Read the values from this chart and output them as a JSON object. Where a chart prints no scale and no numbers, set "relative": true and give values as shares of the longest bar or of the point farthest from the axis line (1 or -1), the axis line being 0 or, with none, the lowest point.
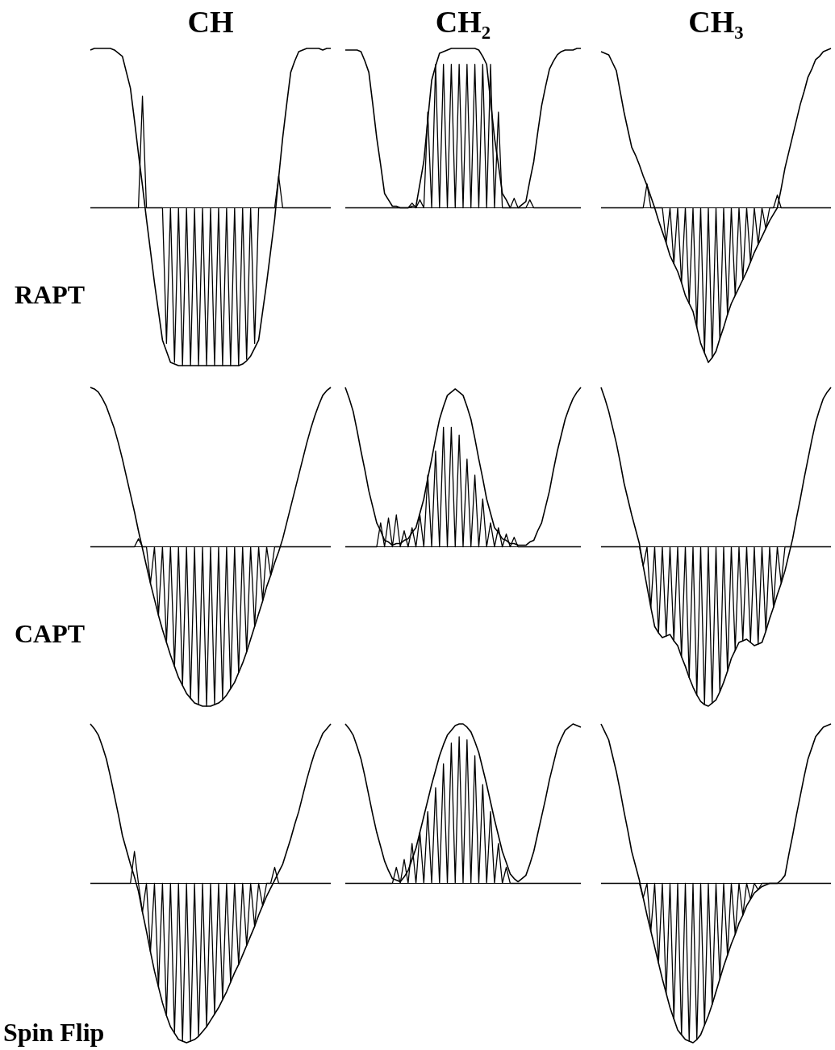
{
  "chart_data": [
    {
      "type": "line",
      "title": "CH",
      "ylabel": "RAPT",
      "relative": true,
      "categories": [
        null,
        null,
        null,
        null,
        null,
        null,
        null,
        null,
        null,
        null,
        null,
        null,
        null,
        null,
        null,
        null,
        null,
        null,
        null,
        null,
        null,
        null,
        null,
        null,
        null,
        null,
        null,
        null,
        null,
        null,
        null,
        null,
        null,
        null,
        null,
        null,
        null,
        null,
        null,
        null,
        null,
        null,
        null,
        null,
        null,
        null,
        null,
        null,
        null,
        null,
        null,
        null,
        null,
        null,
        null,
        null,
        null,
        null,
        null,
        null,
        null
      ],
      "series": [
        {
          "color": "#000000",
          "values": [
            0.99,
            1,
            1,
            1,
            1,
            1,
            0.99,
            0.97,
            0.95,
            0.85,
            0.75,
            0.55,
            0.34,
            0.14,
            -0.07,
            -0.27,
            -0.47,
            -0.65,
            -0.83,
            -0.9,
            -0.97,
            -0.98,
            -0.99,
            -0.99,
            -0.99,
            -0.99,
            -0.99,
            -0.99,
            -0.99,
            -0.99,
            -0.99,
            -0.99,
            -0.99,
            -0.99,
            -0.99,
            -0.99,
            -0.99,
            -0.99,
            -0.98,
            -0.96,
            -0.93,
            -0.88,
            -0.83,
            -0.65,
            -0.47,
            -0.27,
            -0.07,
            0.19,
            0.44,
            0.65,
            0.85,
            0.92,
            0.98,
            0.99,
            1,
            1,
            1,
            1,
            0.99,
            1,
            1
          ]
        },
        {
          "color": "#000000",
          "values": [
            0,
            0,
            0,
            0,
            0,
            0,
            0,
            0,
            0,
            0,
            0,
            0,
            0,
            0.7,
            0,
            0,
            0,
            0,
            0,
            -0.85,
            0,
            -0.97,
            0,
            -0.99,
            0,
            -0.99,
            0,
            -0.99,
            0,
            -0.99,
            0,
            -0.99,
            0,
            -0.99,
            0,
            -0.99,
            0,
            -0.99,
            0,
            -0.95,
            0,
            -0.85,
            0,
            0,
            0,
            0,
            0,
            0.2,
            0,
            0,
            0,
            0,
            0,
            0,
            0,
            0,
            0,
            0,
            0,
            0,
            0
          ]
        }
      ]
    },
    {
      "type": "line",
      "title": "CH₂",
      "relative": true,
      "categories": [
        null,
        null,
        null,
        null,
        null,
        null,
        null,
        null,
        null,
        null,
        null,
        null,
        null,
        null,
        null,
        null,
        null,
        null,
        null,
        null,
        null,
        null,
        null,
        null,
        null,
        null,
        null,
        null,
        null,
        null,
        null,
        null,
        null,
        null,
        null,
        null,
        null,
        null,
        null,
        null,
        null,
        null,
        null,
        null,
        null,
        null,
        null,
        null,
        null,
        null,
        null,
        null,
        null,
        null,
        null,
        null,
        null,
        null,
        null,
        null,
        null
      ],
      "series": [
        {
          "color": "#000000",
          "values": [
            0.99,
            0.99,
            0.99,
            0.99,
            0.98,
            0.92,
            0.85,
            0.65,
            0.44,
            0.27,
            0.09,
            0.05,
            0.01,
            0.01,
            0,
            0,
            0,
            0.01,
            0.01,
            0.15,
            0.29,
            0.55,
            0.8,
            0.89,
            0.97,
            0.98,
            0.99,
            1,
            1,
            1,
            1,
            1,
            1,
            1,
            0.99,
            0.95,
            0.9,
            0.67,
            0.44,
            0.27,
            0.09,
            0.05,
            0,
            0,
            0,
            0.02,
            0.04,
            0.17,
            0.29,
            0.47,
            0.64,
            0.76,
            0.87,
            0.92,
            0.96,
            0.98,
            0.99,
            0.99,
            0.99,
            1,
            1
          ]
        },
        {
          "color": "#000000",
          "values": [
            0,
            0,
            0,
            0,
            0,
            0,
            0,
            0,
            0,
            0,
            0,
            0,
            0,
            0,
            0,
            0,
            0,
            0.03,
            0,
            0.05,
            0,
            0.6,
            0,
            0.9,
            0,
            0.9,
            0,
            0.9,
            0,
            0.9,
            0,
            0.9,
            0,
            0.9,
            0,
            0.9,
            0,
            0.9,
            0,
            0.6,
            0,
            0,
            0,
            0.06,
            0,
            0,
            0,
            0.05,
            0,
            0,
            0,
            0,
            0,
            0,
            0,
            0,
            0,
            0,
            0,
            0,
            0
          ]
        }
      ]
    },
    {
      "type": "line",
      "title": "CH₃",
      "relative": true,
      "categories": [
        null,
        null,
        null,
        null,
        null,
        null,
        null,
        null,
        null,
        null,
        null,
        null,
        null,
        null,
        null,
        null,
        null,
        null,
        null,
        null,
        null,
        null,
        null,
        null,
        null,
        null,
        null,
        null,
        null,
        null,
        null,
        null,
        null,
        null,
        null,
        null,
        null,
        null,
        null,
        null,
        null,
        null,
        null,
        null,
        null,
        null,
        null,
        null,
        null,
        null,
        null,
        null,
        null,
        null,
        null,
        null,
        null,
        null,
        null,
        null,
        null
      ],
      "series": [
        {
          "color": "#000000",
          "values": [
            0.98,
            0.97,
            0.96,
            0.91,
            0.86,
            0.73,
            0.6,
            0.49,
            0.38,
            0.33,
            0.27,
            0.2,
            0.14,
            0.07,
            0,
            -0.08,
            -0.15,
            -0.22,
            -0.3,
            -0.35,
            -0.4,
            -0.47,
            -0.55,
            -0.6,
            -0.65,
            -0.75,
            -0.85,
            -0.91,
            -0.97,
            -0.94,
            -0.9,
            -0.82,
            -0.75,
            -0.67,
            -0.6,
            -0.55,
            -0.5,
            -0.45,
            -0.4,
            -0.34,
            -0.28,
            -0.23,
            -0.18,
            -0.13,
            -0.08,
            -0.04,
            0,
            0.12,
            0.25,
            0.35,
            0.45,
            0.55,
            0.65,
            0.73,
            0.82,
            0.87,
            0.93,
            0.95,
            0.98,
            0.99,
            1
          ]
        },
        {
          "color": "#000000",
          "values": [
            0,
            0,
            0,
            0,
            0,
            0,
            0,
            0,
            0,
            0,
            0,
            0,
            0.15,
            0,
            0,
            0,
            0,
            -0.22,
            0,
            -0.35,
            0,
            -0.47,
            0,
            -0.6,
            0,
            -0.75,
            0,
            -0.91,
            0,
            -0.94,
            0,
            -0.82,
            0,
            -0.67,
            0,
            -0.55,
            0,
            -0.45,
            0,
            -0.34,
            0,
            -0.23,
            0,
            -0.13,
            0,
            0,
            0.08,
            0,
            0,
            0,
            0,
            0,
            0,
            0,
            0,
            0,
            0,
            0,
            0,
            0,
            0
          ]
        }
      ]
    },
    {
      "type": "line",
      "ylabel": "CAPT",
      "relative": true,
      "categories": [
        null,
        null,
        null,
        null,
        null,
        null,
        null,
        null,
        null,
        null,
        null,
        null,
        null,
        null,
        null,
        null,
        null,
        null,
        null,
        null,
        null,
        null,
        null,
        null,
        null,
        null,
        null,
        null,
        null,
        null,
        null,
        null,
        null,
        null,
        null,
        null,
        null,
        null,
        null,
        null,
        null,
        null,
        null,
        null,
        null,
        null,
        null,
        null,
        null,
        null,
        null,
        null,
        null,
        null,
        null,
        null,
        null,
        null,
        null,
        null,
        null
      ],
      "series": [
        {
          "color": "#000000",
          "values": [
            1,
            0.99,
            0.97,
            0.93,
            0.88,
            0.81,
            0.74,
            0.65,
            0.55,
            0.44,
            0.33,
            0.22,
            0.1,
            -0.01,
            -0.12,
            -0.23,
            -0.33,
            -0.43,
            -0.52,
            -0.6,
            -0.68,
            -0.75,
            -0.82,
            -0.87,
            -0.92,
            -0.95,
            -0.98,
            -0.99,
            -1,
            -1,
            -1,
            -0.99,
            -0.98,
            -0.96,
            -0.93,
            -0.89,
            -0.85,
            -0.79,
            -0.73,
            -0.66,
            -0.58,
            -0.5,
            -0.42,
            -0.34,
            -0.25,
            -0.18,
            -0.1,
            -0.03,
            0.05,
            0.15,
            0.25,
            0.35,
            0.45,
            0.55,
            0.65,
            0.74,
            0.82,
            0.89,
            0.95,
            0.98,
            1
          ]
        },
        {
          "color": "#000000",
          "values": [
            0,
            0,
            0,
            0,
            0,
            0,
            0,
            0,
            0,
            0,
            0,
            0,
            0.05,
            0,
            0,
            -0.23,
            0,
            -0.43,
            0,
            -0.6,
            0,
            -0.75,
            0,
            -0.87,
            0,
            -0.95,
            0,
            -0.99,
            0,
            -1,
            0,
            -0.99,
            0,
            -0.96,
            0,
            -0.89,
            0,
            -0.79,
            0,
            -0.66,
            0,
            -0.5,
            0,
            -0.34,
            0,
            -0.18,
            0,
            0,
            0,
            0,
            0,
            0,
            0,
            0,
            0,
            0,
            0,
            0,
            0,
            0,
            0
          ]
        }
      ]
    },
    {
      "type": "line",
      "relative": true,
      "categories": [
        null,
        null,
        null,
        null,
        null,
        null,
        null,
        null,
        null,
        null,
        null,
        null,
        null,
        null,
        null,
        null,
        null,
        null,
        null,
        null,
        null,
        null,
        null,
        null,
        null,
        null,
        null,
        null,
        null,
        null,
        null,
        null,
        null,
        null,
        null,
        null,
        null,
        null,
        null,
        null,
        null,
        null,
        null,
        null,
        null,
        null,
        null,
        null,
        null,
        null,
        null,
        null,
        null,
        null,
        null,
        null,
        null,
        null,
        null,
        null,
        null
      ],
      "series": [
        {
          "color": "#000000",
          "values": [
            1,
            0.93,
            0.85,
            0.73,
            0.6,
            0.48,
            0.35,
            0.25,
            0.15,
            0.1,
            0.04,
            0.03,
            0.01,
            0.02,
            0.02,
            0.04,
            0.05,
            0.09,
            0.12,
            0.21,
            0.3,
            0.43,
            0.55,
            0.68,
            0.8,
            0.88,
            0.95,
            0.97,
            0.99,
            0.97,
            0.95,
            0.88,
            0.8,
            0.68,
            0.55,
            0.43,
            0.3,
            0.21,
            0.12,
            0.09,
            0.05,
            0.04,
            0.02,
            0.02,
            0.01,
            0.01,
            0.01,
            0.03,
            0.04,
            0.1,
            0.15,
            0.25,
            0.35,
            0.48,
            0.6,
            0.7,
            0.8,
            0.87,
            0.93,
            0.97,
            1
          ]
        },
        {
          "color": "#000000",
          "values": [
            0,
            0,
            0,
            0,
            0,
            0,
            0,
            0,
            0,
            0.15,
            0,
            0.18,
            0,
            0.2,
            0,
            0.1,
            0,
            0.12,
            0,
            0.2,
            0,
            0.45,
            0,
            0.6,
            0,
            0.75,
            0,
            0.75,
            0,
            0.7,
            0,
            0.55,
            0,
            0.45,
            0,
            0.3,
            0,
            0.15,
            0,
            0.12,
            0,
            0.08,
            0,
            0.06,
            0,
            0,
            0,
            0,
            0,
            0,
            0,
            0,
            0,
            0,
            0,
            0,
            0,
            0,
            0,
            0,
            0
          ]
        }
      ]
    },
    {
      "type": "line",
      "relative": true,
      "categories": [
        null,
        null,
        null,
        null,
        null,
        null,
        null,
        null,
        null,
        null,
        null,
        null,
        null,
        null,
        null,
        null,
        null,
        null,
        null,
        null,
        null,
        null,
        null,
        null,
        null,
        null,
        null,
        null,
        null,
        null,
        null,
        null,
        null,
        null,
        null,
        null,
        null,
        null,
        null,
        null,
        null,
        null,
        null,
        null,
        null,
        null,
        null,
        null,
        null,
        null,
        null,
        null,
        null,
        null,
        null,
        null,
        null,
        null,
        null,
        null,
        null
      ],
      "series": [
        {
          "color": "#000000",
          "values": [
            1,
            0.93,
            0.85,
            0.75,
            0.65,
            0.53,
            0.4,
            0.3,
            0.2,
            0.11,
            0.02,
            -0.12,
            -0.25,
            -0.38,
            -0.5,
            -0.54,
            -0.57,
            -0.56,
            -0.55,
            -0.59,
            -0.62,
            -0.69,
            -0.75,
            -0.82,
            -0.88,
            -0.93,
            -0.97,
            -0.99,
            -1,
            -0.98,
            -0.96,
            -0.91,
            -0.85,
            -0.78,
            -0.7,
            -0.65,
            -0.6,
            -0.59,
            -0.58,
            -0.6,
            -0.62,
            -0.61,
            -0.6,
            -0.53,
            -0.45,
            -0.38,
            -0.3,
            -0.23,
            -0.15,
            -0.05,
            0.05,
            0.18,
            0.3,
            0.43,
            0.55,
            0.67,
            0.78,
            0.86,
            0.93,
            0.97,
            1
          ]
        },
        {
          "color": "#000000",
          "values": [
            0,
            0,
            0,
            0,
            0,
            0,
            0,
            0,
            0,
            0,
            0,
            -0.12,
            0,
            -0.38,
            0,
            -0.54,
            0,
            -0.56,
            0,
            -0.59,
            0,
            -0.69,
            0,
            -0.82,
            0,
            -0.93,
            0,
            -0.99,
            0,
            -0.98,
            0,
            -0.91,
            0,
            -0.78,
            0,
            -0.65,
            0,
            -0.59,
            0,
            -0.6,
            0,
            -0.61,
            0,
            -0.53,
            0,
            -0.38,
            0,
            -0.23,
            0,
            0,
            0,
            0,
            0,
            0,
            0,
            0,
            0,
            0,
            0,
            0,
            0
          ]
        }
      ]
    },
    {
      "type": "line",
      "ylabel": "Spin Flip",
      "relative": true,
      "categories": [
        null,
        null,
        null,
        null,
        null,
        null,
        null,
        null,
        null,
        null,
        null,
        null,
        null,
        null,
        null,
        null,
        null,
        null,
        null,
        null,
        null,
        null,
        null,
        null,
        null,
        null,
        null,
        null,
        null,
        null,
        null,
        null,
        null,
        null,
        null,
        null,
        null,
        null,
        null,
        null,
        null,
        null,
        null,
        null,
        null,
        null,
        null,
        null,
        null,
        null,
        null,
        null,
        null,
        null,
        null,
        null,
        null,
        null,
        null,
        null,
        null
      ],
      "series": [
        {
          "color": "#000000",
          "values": [
            1,
            0.97,
            0.93,
            0.86,
            0.78,
            0.67,
            0.55,
            0.43,
            0.3,
            0.21,
            0.12,
            0.04,
            -0.05,
            -0.18,
            -0.3,
            -0.43,
            -0.55,
            -0.65,
            -0.75,
            -0.83,
            -0.9,
            -0.94,
            -0.98,
            -0.99,
            -1,
            -0.99,
            -0.98,
            -0.96,
            -0.93,
            -0.9,
            -0.86,
            -0.82,
            -0.78,
            -0.73,
            -0.68,
            -0.62,
            -0.56,
            -0.51,
            -0.45,
            -0.39,
            -0.33,
            -0.27,
            -0.2,
            -0.14,
            -0.08,
            -0.03,
            0.02,
            0.07,
            0.12,
            0.2,
            0.28,
            0.37,
            0.45,
            0.55,
            0.65,
            0.74,
            0.82,
            0.88,
            0.94,
            0.97,
            1
          ]
        },
        {
          "color": "#000000",
          "values": [
            0,
            0,
            0,
            0,
            0,
            0,
            0,
            0,
            0,
            0,
            0,
            0.2,
            0,
            -0.18,
            0,
            -0.43,
            0,
            -0.65,
            0,
            -0.83,
            0,
            -0.94,
            0,
            -0.99,
            0,
            -0.99,
            0,
            -0.96,
            0,
            -0.9,
            0,
            -0.82,
            0,
            -0.73,
            0,
            -0.62,
            0,
            -0.51,
            0,
            -0.39,
            0,
            -0.27,
            0,
            -0.14,
            0,
            0,
            0.1,
            0,
            0,
            0,
            0,
            0,
            0,
            0,
            0,
            0,
            0,
            0,
            0,
            0,
            0
          ]
        }
      ]
    },
    {
      "type": "line",
      "relative": true,
      "categories": [
        null,
        null,
        null,
        null,
        null,
        null,
        null,
        null,
        null,
        null,
        null,
        null,
        null,
        null,
        null,
        null,
        null,
        null,
        null,
        null,
        null,
        null,
        null,
        null,
        null,
        null,
        null,
        null,
        null,
        null,
        null,
        null,
        null,
        null,
        null,
        null,
        null,
        null,
        null,
        null,
        null,
        null,
        null,
        null,
        null,
        null,
        null,
        null,
        null,
        null,
        null,
        null,
        null,
        null,
        null,
        null,
        null,
        null,
        null,
        null,
        null
      ],
      "series": [
        {
          "color": "#000000",
          "values": [
            1,
            0.97,
            0.93,
            0.86,
            0.78,
            0.67,
            0.55,
            0.43,
            0.32,
            0.23,
            0.14,
            0.08,
            0.03,
            0.02,
            0.01,
            0.04,
            0.08,
            0.15,
            0.22,
            0.32,
            0.42,
            0.52,
            0.62,
            0.71,
            0.8,
            0.87,
            0.93,
            0.96,
            0.99,
            1,
            1,
            0.98,
            0.95,
            0.89,
            0.82,
            0.72,
            0.62,
            0.51,
            0.4,
            0.3,
            0.2,
            0.13,
            0.06,
            0.03,
            0.01,
            0.03,
            0.05,
            0.12,
            0.2,
            0.31,
            0.42,
            0.53,
            0.65,
            0.75,
            0.85,
            0.91,
            0.96,
            0.98,
            1,
            0.99,
            0.98
          ]
        },
        {
          "color": "#000000",
          "values": [
            0,
            0,
            0,
            0,
            0,
            0,
            0,
            0,
            0,
            0,
            0,
            0,
            0,
            0.1,
            0,
            0.15,
            0,
            0.25,
            0,
            0.32,
            0,
            0.45,
            0,
            0.6,
            0,
            0.75,
            0,
            0.88,
            0,
            0.92,
            0,
            0.9,
            0,
            0.8,
            0,
            0.62,
            0,
            0.45,
            0,
            0.25,
            0,
            0.1,
            0,
            0,
            0,
            0,
            0,
            0,
            0,
            0,
            0,
            0,
            0,
            0,
            0,
            0,
            0,
            0,
            0,
            0,
            0
          ]
        }
      ]
    },
    {
      "type": "line",
      "relative": true,
      "categories": [
        null,
        null,
        null,
        null,
        null,
        null,
        null,
        null,
        null,
        null,
        null,
        null,
        null,
        null,
        null,
        null,
        null,
        null,
        null,
        null,
        null,
        null,
        null,
        null,
        null,
        null,
        null,
        null,
        null,
        null,
        null,
        null,
        null,
        null,
        null,
        null,
        null,
        null,
        null,
        null,
        null,
        null,
        null,
        null,
        null,
        null,
        null,
        null,
        null,
        null,
        null,
        null,
        null,
        null,
        null,
        null,
        null,
        null,
        null,
        null,
        null
      ],
      "series": [
        {
          "color": "#000000",
          "values": [
            1,
            0.95,
            0.9,
            0.8,
            0.7,
            0.58,
            0.45,
            0.33,
            0.2,
            0.11,
            0.02,
            -0.09,
            -0.2,
            -0.3,
            -0.4,
            -0.5,
            -0.6,
            -0.69,
            -0.78,
            -0.85,
            -0.92,
            -0.95,
            -0.98,
            -0.99,
            -1,
            -0.98,
            -0.95,
            -0.89,
            -0.83,
            -0.76,
            -0.68,
            -0.6,
            -0.52,
            -0.45,
            -0.38,
            -0.32,
            -0.25,
            -0.2,
            -0.14,
            -0.1,
            -0.06,
            -0.04,
            -0.02,
            -0.01,
            0,
            0,
            0,
            0.02,
            0.05,
            0.18,
            0.3,
            0.43,
            0.55,
            0.67,
            0.78,
            0.85,
            0.92,
            0.95,
            0.98,
            0.99,
            1
          ]
        },
        {
          "color": "#000000",
          "values": [
            0,
            0,
            0,
            0,
            0,
            0,
            0,
            0,
            0,
            0,
            0,
            -0.09,
            0,
            -0.3,
            0,
            -0.5,
            0,
            -0.69,
            0,
            -0.85,
            0,
            -0.95,
            0,
            -0.99,
            0,
            -0.98,
            0,
            -0.89,
            0,
            -0.76,
            0,
            -0.6,
            0,
            -0.45,
            0,
            -0.32,
            0,
            -0.2,
            0,
            -0.1,
            0,
            -0.04,
            0,
            0,
            0,
            0,
            0,
            0,
            0,
            0,
            0,
            0,
            0,
            0,
            0,
            0,
            0,
            0,
            0,
            0,
            0
          ]
        }
      ]
    }
  ]
}
